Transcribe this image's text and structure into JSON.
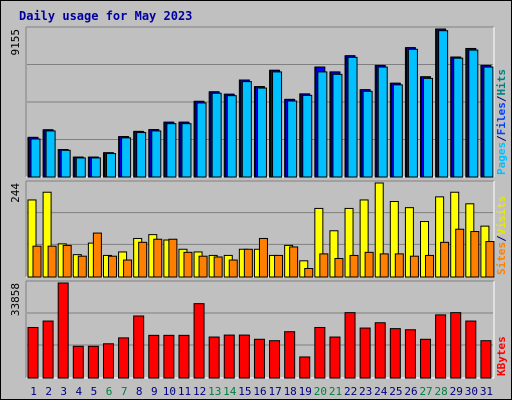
{
  "title": "Daily usage for May 2023",
  "ymax_labels": {
    "top": "9155",
    "mid": "244",
    "bottom": "33858"
  },
  "right_labels": {
    "top": [
      {
        "text": "Pages",
        "color": "#00c0ff"
      },
      {
        "text": "/",
        "color": "#000080"
      },
      {
        "text": "Files",
        "color": "#0040ff"
      },
      {
        "text": "/",
        "color": "#000080"
      },
      {
        "text": "Hits",
        "color": "#008080"
      }
    ],
    "mid": [
      {
        "text": "Sites",
        "color": "#ff8000"
      },
      {
        "text": "/",
        "color": "#000080"
      },
      {
        "text": "Visits",
        "color": "#e8e800"
      }
    ],
    "bottom": [
      {
        "text": "KBytes",
        "color": "#ff0000"
      }
    ]
  },
  "colors": {
    "hits": "#008080",
    "files": "#0000ff",
    "pages": "#00c0ff",
    "visits": "#ffff00",
    "sites": "#ff8000",
    "kbytes": "#ff0000",
    "weekend_day": "#008040",
    "weekday": "#000080"
  },
  "chart_data": [
    {
      "type": "bar",
      "title": "Daily usage for May 2023",
      "categories": [
        "1",
        "2",
        "3",
        "4",
        "5",
        "6",
        "7",
        "8",
        "9",
        "10",
        "11",
        "12",
        "13",
        "14",
        "15",
        "16",
        "17",
        "18",
        "19",
        "20",
        "21",
        "22",
        "23",
        "24",
        "25",
        "26",
        "27",
        "28",
        "29",
        "30",
        "31"
      ],
      "weekend_days": [
        6,
        7,
        13,
        14,
        20,
        21,
        27,
        28
      ],
      "ylim": [
        0,
        9155
      ],
      "series": [
        {
          "name": "Hits",
          "values": [
            2450,
            2920,
            1700,
            1230,
            1230,
            1500,
            2500,
            2820,
            2930,
            3390,
            3390,
            4680,
            5270,
            5120,
            6000,
            5590,
            6600,
            4800,
            5140,
            6800,
            6500,
            7500,
            5400,
            6900,
            5800,
            8000,
            6200,
            9155,
            7420,
            7950,
            6900
          ]
        },
        {
          "name": "Files",
          "values": [
            2450,
            2920,
            1700,
            1230,
            1230,
            1500,
            2500,
            2820,
            2930,
            3390,
            3390,
            4680,
            5270,
            5120,
            6000,
            5590,
            6600,
            4800,
            5140,
            6800,
            6500,
            7500,
            5400,
            6900,
            5800,
            8000,
            6200,
            9155,
            7420,
            7950,
            6900
          ]
        },
        {
          "name": "Pages",
          "values": [
            2350,
            2850,
            1650,
            1180,
            1180,
            1450,
            2420,
            2750,
            2850,
            3300,
            3300,
            4580,
            5180,
            5030,
            5900,
            5500,
            6500,
            4700,
            5050,
            6500,
            6350,
            7400,
            5300,
            6800,
            5700,
            7900,
            6100,
            9050,
            7350,
            7850,
            6800
          ]
        }
      ]
    },
    {
      "type": "bar",
      "categories": [
        "1",
        "2",
        "3",
        "4",
        "5",
        "6",
        "7",
        "8",
        "9",
        "10",
        "11",
        "12",
        "13",
        "14",
        "15",
        "16",
        "17",
        "18",
        "19",
        "20",
        "21",
        "22",
        "23",
        "24",
        "25",
        "26",
        "27",
        "28",
        "29",
        "30",
        "31"
      ],
      "ylim": [
        0,
        244
      ],
      "series": [
        {
          "name": "Visits",
          "values": [
            200,
            220,
            86,
            58,
            88,
            56,
            65,
            100,
            110,
            96,
            72,
            65,
            56,
            56,
            72,
            72,
            56,
            82,
            42,
            178,
            120,
            178,
            200,
            244,
            196,
            180,
            144,
            208,
            220,
            190,
            132
          ]
        },
        {
          "name": "Sites",
          "values": [
            80,
            80,
            82,
            54,
            114,
            54,
            44,
            90,
            98,
            98,
            64,
            54,
            52,
            44,
            72,
            100,
            56,
            78,
            22,
            60,
            48,
            56,
            64,
            60,
            60,
            54,
            56,
            90,
            124,
            118,
            92
          ]
        }
      ]
    },
    {
      "type": "bar",
      "categories": [
        "1",
        "2",
        "3",
        "4",
        "5",
        "6",
        "7",
        "8",
        "9",
        "10",
        "11",
        "12",
        "13",
        "14",
        "15",
        "16",
        "17",
        "18",
        "19",
        "20",
        "21",
        "22",
        "23",
        "24",
        "25",
        "26",
        "27",
        "28",
        "29",
        "30",
        "31"
      ],
      "ylim": [
        0,
        33858
      ],
      "series": [
        {
          "name": "KBytes",
          "values": [
            18000,
            20300,
            33858,
            11300,
            11300,
            12200,
            14300,
            22100,
            15200,
            15200,
            15200,
            26500,
            14600,
            15300,
            15300,
            13800,
            13300,
            16500,
            7500,
            18000,
            14600,
            23300,
            17800,
            19700,
            17600,
            17200,
            13800,
            22500,
            23300,
            20300,
            13300
          ]
        }
      ]
    }
  ]
}
